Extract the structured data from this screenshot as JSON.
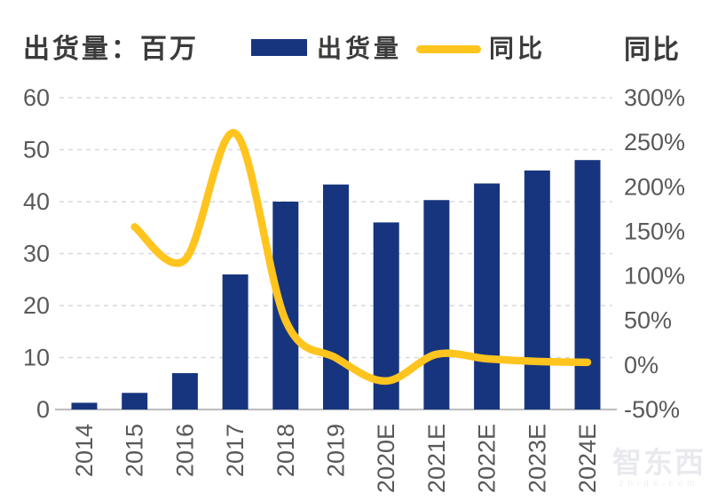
{
  "header": {
    "left_axis_title": "出货量：百万",
    "right_axis_title": "同比",
    "legend": [
      {
        "label": "出货量",
        "type": "bar",
        "color": "#17357E"
      },
      {
        "label": "同比",
        "type": "line",
        "color": "#FFC41E"
      }
    ]
  },
  "watermark": {
    "brand": "智东西",
    "domain": "zhidx.com"
  },
  "chart_data": {
    "type": "combo-bar-line",
    "categories": [
      "2014",
      "2015",
      "2016",
      "2017",
      "2018",
      "2019",
      "2020E",
      "2021E",
      "2022E",
      "2023E",
      "2024E"
    ],
    "series": [
      {
        "name": "出货量",
        "type": "bar",
        "axis": "left",
        "color": "#17357E",
        "values": [
          1.3,
          3.2,
          7,
          26,
          40,
          43.3,
          36,
          40.3,
          43.5,
          46,
          48
        ]
      },
      {
        "name": "同比",
        "type": "line",
        "axis": "right",
        "color": "#FFC41E",
        "values": [
          null,
          155,
          118,
          260,
          50,
          8,
          -18,
          12,
          7,
          4,
          3
        ]
      }
    ],
    "left_axis": {
      "title": "出货量：百万",
      "min": 0,
      "max": 60,
      "ticks": [
        "60",
        "50",
        "40",
        "30",
        "20",
        "10",
        "0"
      ]
    },
    "right_axis": {
      "title": "同比",
      "min": -50,
      "max": 300,
      "ticks": [
        "300%",
        "250%",
        "200%",
        "150%",
        "100%",
        "50%",
        "0%",
        "-50%"
      ]
    },
    "grid": {
      "horizontal": "dashed",
      "color": "#d9d9d9",
      "zero_line_color": "#c0c0c0"
    },
    "legend_position": "top",
    "x_label_rotation": -90
  }
}
